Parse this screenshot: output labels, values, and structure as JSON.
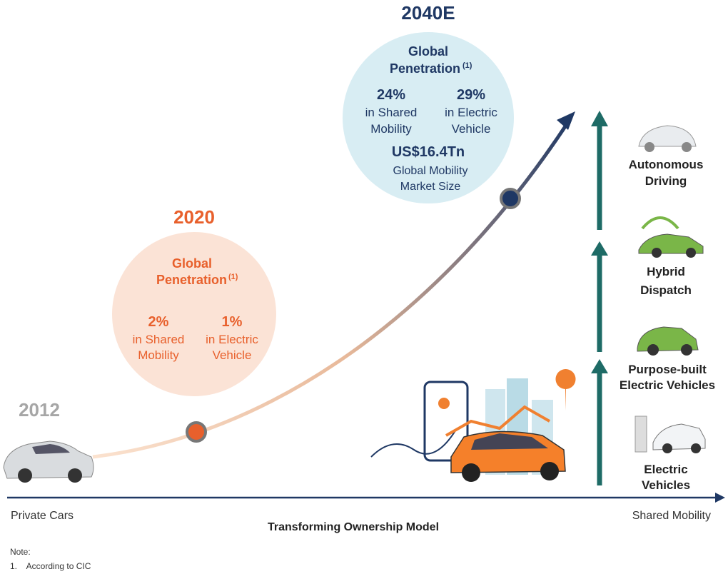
{
  "years": {
    "start": "2012",
    "mid": "2020",
    "end": "2040E"
  },
  "bubble_2020": {
    "title_lines": [
      "Global",
      "Penetration"
    ],
    "footnote_ref": "(1)",
    "stats": [
      {
        "value": "2%",
        "label_lines": [
          "in Shared",
          "Mobility"
        ]
      },
      {
        "value": "1%",
        "label_lines": [
          "in Electric",
          "Vehicle"
        ]
      }
    ]
  },
  "bubble_2040": {
    "title_lines": [
      "Global",
      "Penetration"
    ],
    "footnote_ref": "(1)",
    "stats": [
      {
        "value": "24%",
        "label_lines": [
          "in Shared",
          "Mobility"
        ]
      },
      {
        "value": "29%",
        "label_lines": [
          "in Electric",
          "Vehicle"
        ]
      }
    ],
    "market": {
      "value": "US$16.4Tn",
      "label_lines": [
        "Global Mobility",
        "Market Size"
      ]
    }
  },
  "stages": [
    {
      "label_lines": [
        "Autonomous",
        "Driving"
      ]
    },
    {
      "label_lines": [
        "Hybrid",
        "Dispatch"
      ]
    },
    {
      "label_lines": [
        "Purpose-built",
        "Electric Vehicles"
      ]
    },
    {
      "label_lines": [
        "Electric",
        "Vehicles"
      ]
    }
  ],
  "axis": {
    "left": "Private Cars",
    "right": "Shared Mobility",
    "title": "Transforming Ownership Model"
  },
  "note": {
    "heading": "Note:",
    "items": [
      "1.    According to CIC"
    ]
  }
}
